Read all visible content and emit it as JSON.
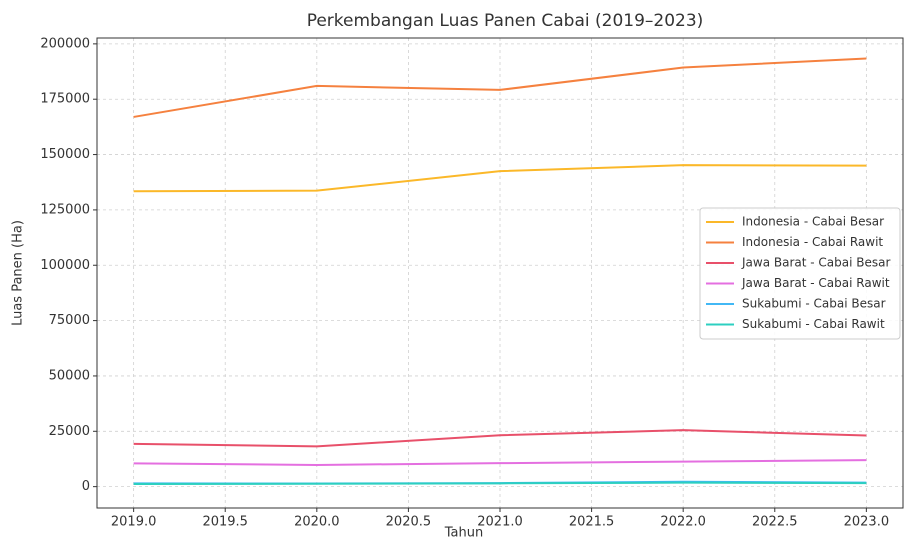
{
  "chart_data": {
    "type": "line",
    "title": "Perkembangan Luas Panen Cabai (2019–2023)",
    "x_label": "Tahun",
    "y_label": "Luas Panen (Ha)",
    "x": [
      2019,
      2020,
      2021,
      2022,
      2023
    ],
    "series": [
      {
        "name": "Indonesia - Cabai Besar",
        "color": "#fbb829",
        "values": [
          133400,
          133700,
          142500,
          145200,
          145000
        ]
      },
      {
        "name": "Indonesia - Cabai Rawit",
        "color": "#f5813f",
        "values": [
          167000,
          181000,
          179200,
          189300,
          193400
        ]
      },
      {
        "name": "Jawa Barat - Cabai Besar",
        "color": "#e8506a",
        "values": [
          19300,
          18200,
          23200,
          25500,
          23100
        ]
      },
      {
        "name": "Jawa Barat - Cabai Rawit",
        "color": "#e46fe0",
        "values": [
          10500,
          9800,
          10600,
          11300,
          12000
        ]
      },
      {
        "name": "Sukabumi - Cabai Besar",
        "color": "#42b8f5",
        "values": [
          1500,
          1400,
          1600,
          2200,
          1800
        ]
      },
      {
        "name": "Sukabumi - Cabai Rawit",
        "color": "#2ccfc0",
        "values": [
          1200,
          1300,
          1500,
          1800,
          1600
        ]
      }
    ],
    "xlim": [
      2018.8,
      2023.2
    ],
    "xticks": [
      {
        "value": 2019,
        "label": "2019.0"
      },
      {
        "value": 2019.5,
        "label": "2019.5"
      },
      {
        "value": 2020,
        "label": "2020.0"
      },
      {
        "value": 2020.5,
        "label": "2020.5"
      },
      {
        "value": 2021,
        "label": "2021.0"
      },
      {
        "value": 2021.5,
        "label": "2021.5"
      },
      {
        "value": 2022,
        "label": "2022.0"
      },
      {
        "value": 2022.5,
        "label": "2022.5"
      },
      {
        "value": 2023,
        "label": "2023.0"
      }
    ],
    "ylim": [
      -9650,
      202650
    ],
    "yticks": [
      0,
      25000,
      50000,
      75000,
      100000,
      125000,
      150000,
      175000,
      200000
    ],
    "grid": true,
    "legend": "right"
  }
}
